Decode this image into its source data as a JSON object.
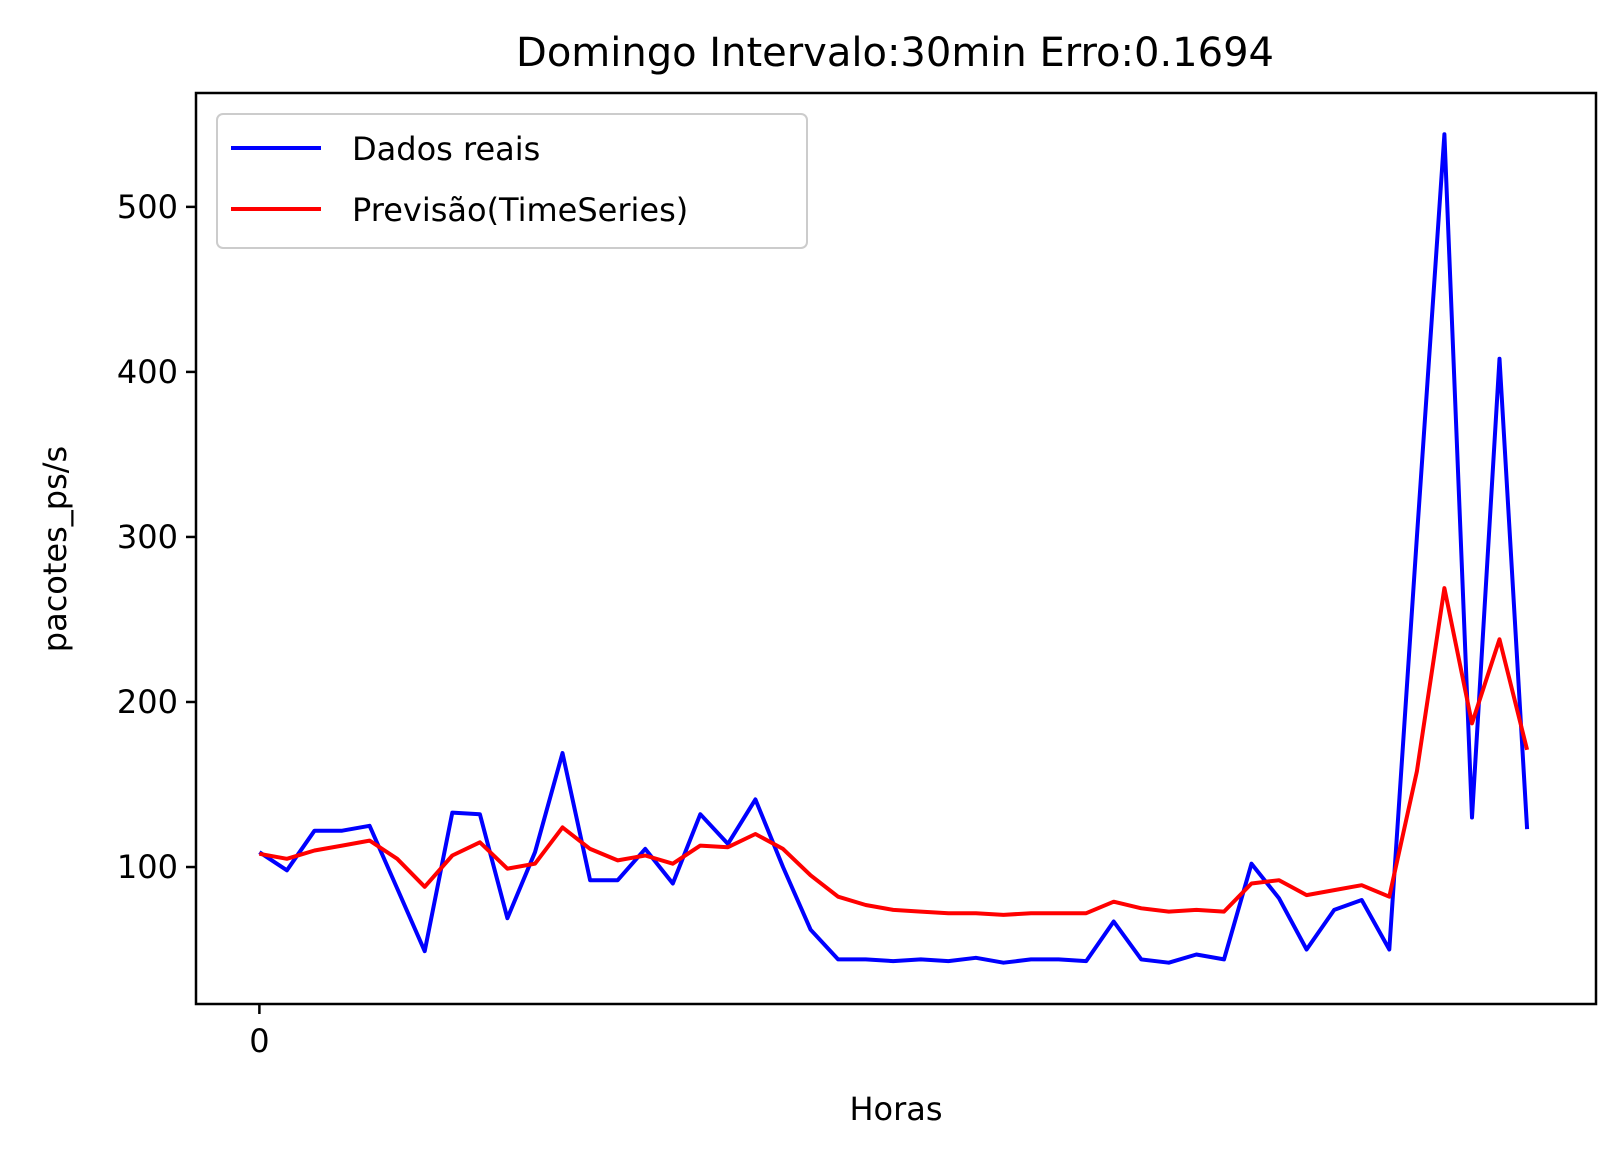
{
  "chart_data": {
    "type": "line",
    "title": "Domingo Intervalo:30min Erro:0.1694",
    "xlabel": "Horas",
    "ylabel": "pacotes_ps/s",
    "xlim": [
      -2.3,
      48.5
    ],
    "ylim": [
      17,
      569
    ],
    "x_ticks": [
      {
        "value": 0,
        "label": "0"
      }
    ],
    "y_ticks": [
      {
        "value": 100,
        "label": "100"
      },
      {
        "value": 200,
        "label": "200"
      },
      {
        "value": 300,
        "label": "300"
      },
      {
        "value": 400,
        "label": "400"
      },
      {
        "value": 500,
        "label": "500"
      }
    ],
    "grid": false,
    "legend": "upper-left",
    "x": [
      0,
      1,
      2,
      3,
      4,
      5,
      6,
      7,
      8,
      9,
      10,
      11,
      12,
      13,
      14,
      15,
      16,
      17,
      18,
      19,
      20,
      21,
      22,
      23,
      24,
      25,
      26,
      27,
      28,
      29,
      30,
      31,
      32,
      33,
      34,
      35,
      36,
      37,
      38,
      39,
      40,
      41,
      42,
      43,
      44,
      45,
      46
    ],
    "series": [
      {
        "name": "Dados reais",
        "color": "#0000ff",
        "values": [
          109,
          98,
          122,
          122,
          125,
          87,
          49,
          133,
          132,
          69,
          109,
          169,
          92,
          92,
          111,
          90,
          132,
          114,
          141,
          100,
          62,
          44,
          44,
          43,
          44,
          43,
          45,
          42,
          44,
          44,
          43,
          67,
          44,
          42,
          47,
          44,
          102,
          81,
          50,
          74,
          80,
          50,
          300,
          544,
          130,
          408,
          123
        ]
      },
      {
        "name": "Previsão(TimeSeries)",
        "color": "#ff0000",
        "values": [
          108,
          105,
          110,
          113,
          116,
          105,
          88,
          107,
          115,
          99,
          102,
          124,
          111,
          104,
          107,
          102,
          113,
          112,
          120,
          111,
          95,
          82,
          77,
          74,
          73,
          72,
          72,
          71,
          72,
          72,
          72,
          79,
          75,
          73,
          74,
          73,
          90,
          92,
          83,
          86,
          89,
          82,
          158,
          269,
          187,
          238,
          171
        ]
      }
    ]
  }
}
